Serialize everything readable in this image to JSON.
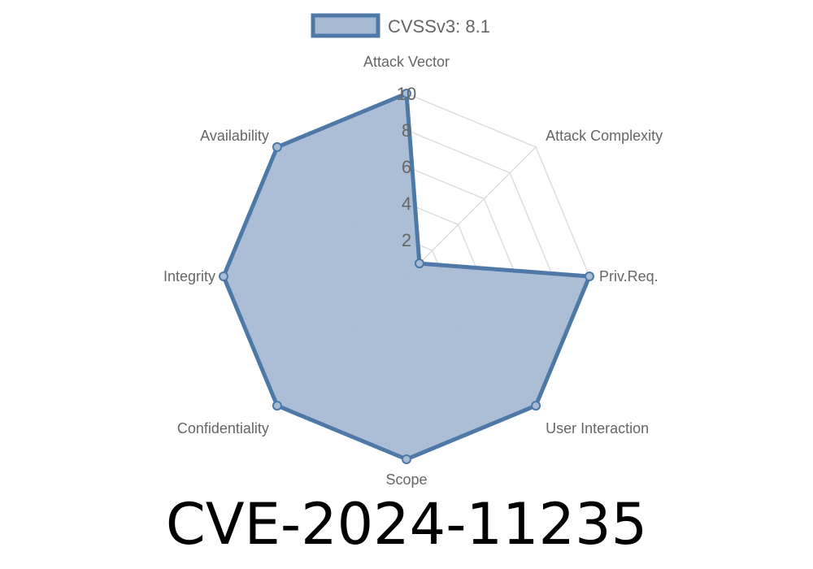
{
  "chart_data": {
    "type": "radar",
    "title": "CVE-2024-11235",
    "axes": [
      "Attack Vector",
      "Attack Complexity",
      "Priv.Req.",
      "User Interaction",
      "Scope",
      "Confidentiality",
      "Integrity",
      "Availability"
    ],
    "series": [
      {
        "name": "CVSSv3: 8.1",
        "values": [
          10,
          1,
          10,
          10,
          10,
          10,
          10,
          10
        ]
      }
    ],
    "rlim": [
      0,
      10
    ],
    "ticks": [
      "2",
      "4",
      "6",
      "8",
      "10"
    ],
    "grid": true,
    "legend_position": "top",
    "colors": {
      "stroke": "#4e79a7",
      "fill": "#a7bbd4",
      "grid": "#dddddd"
    }
  }
}
